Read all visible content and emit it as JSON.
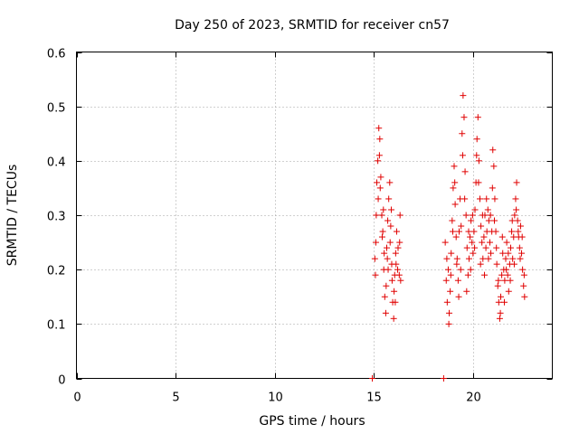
{
  "chart_data": {
    "type": "scatter",
    "title": "Day 250 of 2023, SRMTID for receiver cn57",
    "xlabel": "GPS time / hours",
    "ylabel": "SRMTID / TECUs",
    "xlim": [
      0,
      24
    ],
    "ylim": [
      0,
      0.6
    ],
    "xticks": [
      0,
      5,
      10,
      15,
      20
    ],
    "yticks": [
      0,
      0.1,
      0.2,
      0.3,
      0.4,
      0.5,
      0.6
    ],
    "xtick_labels": [
      "0",
      "5",
      "10",
      "15",
      "20"
    ],
    "ytick_labels": [
      "0",
      "0.1",
      "0.2",
      "0.3",
      "0.4",
      "0.5",
      "0.6"
    ],
    "grid": true,
    "marker": "+",
    "color": "#e00000",
    "series": [
      {
        "name": "cn57",
        "points": [
          [
            14.92,
            0.0
          ],
          [
            18.52,
            0.0
          ],
          [
            15.05,
            0.22
          ],
          [
            15.1,
            0.25
          ],
          [
            15.15,
            0.36
          ],
          [
            15.2,
            0.4
          ],
          [
            15.25,
            0.46
          ],
          [
            15.3,
            0.44
          ],
          [
            15.35,
            0.37
          ],
          [
            15.4,
            0.3
          ],
          [
            15.45,
            0.27
          ],
          [
            15.5,
            0.2
          ],
          [
            15.55,
            0.15
          ],
          [
            15.6,
            0.12
          ],
          [
            15.65,
            0.24
          ],
          [
            15.7,
            0.29
          ],
          [
            15.75,
            0.33
          ],
          [
            15.8,
            0.36
          ],
          [
            15.85,
            0.28
          ],
          [
            15.9,
            0.21
          ],
          [
            15.95,
            0.14
          ],
          [
            16.0,
            0.11
          ],
          [
            16.05,
            0.19
          ],
          [
            16.1,
            0.23
          ],
          [
            16.15,
            0.27
          ],
          [
            16.2,
            0.2
          ],
          [
            16.3,
            0.25
          ],
          [
            16.35,
            0.18
          ],
          [
            15.12,
            0.3
          ],
          [
            15.22,
            0.33
          ],
          [
            15.32,
            0.35
          ],
          [
            15.42,
            0.26
          ],
          [
            15.52,
            0.23
          ],
          [
            15.62,
            0.17
          ],
          [
            15.72,
            0.2
          ],
          [
            15.82,
            0.25
          ],
          [
            15.92,
            0.18
          ],
          [
            16.02,
            0.16
          ],
          [
            16.12,
            0.21
          ],
          [
            16.22,
            0.24
          ],
          [
            16.32,
            0.3
          ],
          [
            15.08,
            0.19
          ],
          [
            15.28,
            0.41
          ],
          [
            15.48,
            0.31
          ],
          [
            15.68,
            0.22
          ],
          [
            15.88,
            0.31
          ],
          [
            16.08,
            0.14
          ],
          [
            16.28,
            0.19
          ],
          [
            18.6,
            0.25
          ],
          [
            18.65,
            0.18
          ],
          [
            18.7,
            0.14
          ],
          [
            18.75,
            0.2
          ],
          [
            18.8,
            0.12
          ],
          [
            18.85,
            0.16
          ],
          [
            18.9,
            0.23
          ],
          [
            18.95,
            0.29
          ],
          [
            19.0,
            0.35
          ],
          [
            19.05,
            0.39
          ],
          [
            19.1,
            0.32
          ],
          [
            19.15,
            0.26
          ],
          [
            19.2,
            0.22
          ],
          [
            19.25,
            0.18
          ],
          [
            19.3,
            0.27
          ],
          [
            19.35,
            0.33
          ],
          [
            19.4,
            0.28
          ],
          [
            19.45,
            0.45
          ],
          [
            19.5,
            0.52
          ],
          [
            19.55,
            0.48
          ],
          [
            19.6,
            0.38
          ],
          [
            19.65,
            0.3
          ],
          [
            19.7,
            0.24
          ],
          [
            19.75,
            0.19
          ],
          [
            19.8,
            0.22
          ],
          [
            19.85,
            0.26
          ],
          [
            19.9,
            0.29
          ],
          [
            19.95,
            0.25
          ],
          [
            20.0,
            0.23
          ],
          [
            20.05,
            0.27
          ],
          [
            20.1,
            0.31
          ],
          [
            20.15,
            0.36
          ],
          [
            20.2,
            0.44
          ],
          [
            20.25,
            0.48
          ],
          [
            20.3,
            0.4
          ],
          [
            20.35,
            0.33
          ],
          [
            20.4,
            0.28
          ],
          [
            20.45,
            0.25
          ],
          [
            20.5,
            0.22
          ],
          [
            20.55,
            0.26
          ],
          [
            20.6,
            0.3
          ],
          [
            20.65,
            0.24
          ],
          [
            20.7,
            0.27
          ],
          [
            20.75,
            0.31
          ],
          [
            20.8,
            0.29
          ],
          [
            20.85,
            0.25
          ],
          [
            20.9,
            0.23
          ],
          [
            20.95,
            0.27
          ],
          [
            21.0,
            0.42
          ],
          [
            21.05,
            0.39
          ],
          [
            21.1,
            0.33
          ],
          [
            21.15,
            0.27
          ],
          [
            21.2,
            0.21
          ],
          [
            21.25,
            0.17
          ],
          [
            21.3,
            0.14
          ],
          [
            21.35,
            0.11
          ],
          [
            21.4,
            0.15
          ],
          [
            21.45,
            0.19
          ],
          [
            21.5,
            0.23
          ],
          [
            21.55,
            0.2
          ],
          [
            21.6,
            0.18
          ],
          [
            21.65,
            0.22
          ],
          [
            21.7,
            0.25
          ],
          [
            21.75,
            0.19
          ],
          [
            21.8,
            0.16
          ],
          [
            21.85,
            0.21
          ],
          [
            21.9,
            0.24
          ],
          [
            21.95,
            0.27
          ],
          [
            22.0,
            0.22
          ],
          [
            22.05,
            0.26
          ],
          [
            22.1,
            0.3
          ],
          [
            22.15,
            0.33
          ],
          [
            22.2,
            0.36
          ],
          [
            22.25,
            0.29
          ],
          [
            22.3,
            0.26
          ],
          [
            22.35,
            0.24
          ],
          [
            22.4,
            0.28
          ],
          [
            22.45,
            0.23
          ],
          [
            22.5,
            0.2
          ],
          [
            22.55,
            0.17
          ],
          [
            22.6,
            0.15
          ],
          [
            18.68,
            0.22
          ],
          [
            18.78,
            0.1
          ],
          [
            18.88,
            0.19
          ],
          [
            18.98,
            0.27
          ],
          [
            19.08,
            0.36
          ],
          [
            19.18,
            0.21
          ],
          [
            19.28,
            0.15
          ],
          [
            19.38,
            0.2
          ],
          [
            19.48,
            0.41
          ],
          [
            19.58,
            0.33
          ],
          [
            19.68,
            0.16
          ],
          [
            19.78,
            0.27
          ],
          [
            19.88,
            0.2
          ],
          [
            19.98,
            0.3
          ],
          [
            20.08,
            0.24
          ],
          [
            20.18,
            0.41
          ],
          [
            20.28,
            0.36
          ],
          [
            20.38,
            0.21
          ],
          [
            20.48,
            0.3
          ],
          [
            20.58,
            0.19
          ],
          [
            20.68,
            0.33
          ],
          [
            20.78,
            0.22
          ],
          [
            20.88,
            0.3
          ],
          [
            20.98,
            0.35
          ],
          [
            21.08,
            0.29
          ],
          [
            21.18,
            0.24
          ],
          [
            21.28,
            0.18
          ],
          [
            21.38,
            0.12
          ],
          [
            21.48,
            0.26
          ],
          [
            21.58,
            0.14
          ],
          [
            21.68,
            0.2
          ],
          [
            21.78,
            0.23
          ],
          [
            21.88,
            0.18
          ],
          [
            21.98,
            0.29
          ],
          [
            22.08,
            0.21
          ],
          [
            22.18,
            0.31
          ],
          [
            22.28,
            0.27
          ],
          [
            22.38,
            0.22
          ],
          [
            22.48,
            0.26
          ],
          [
            22.58,
            0.19
          ]
        ]
      }
    ]
  }
}
